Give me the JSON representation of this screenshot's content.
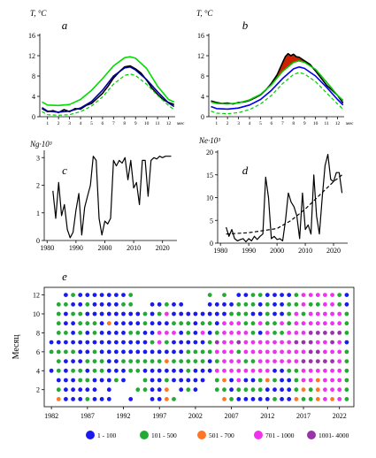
{
  "chart_data": [
    {
      "id": "a",
      "type": "line",
      "panel_label": "a",
      "ylabel": "T, °C",
      "x_unit_label": "мес",
      "x_ticks": [
        1,
        2,
        3,
        4,
        5,
        6,
        7,
        8,
        9,
        10,
        11,
        12
      ],
      "y_ticks": [
        0,
        4,
        8,
        12,
        16
      ],
      "xlim": [
        0.3,
        12.6
      ],
      "ylim": [
        0,
        16
      ],
      "series": [
        {
          "color": "#00dd00",
          "style": "solid",
          "x": [
            0.5,
            1,
            2,
            3,
            4,
            5,
            6,
            7,
            8,
            8.5,
            9,
            10,
            11,
            12,
            12.5
          ],
          "y": [
            2.9,
            2.3,
            2.2,
            2.4,
            3.4,
            5.2,
            7.5,
            10.0,
            11.6,
            11.8,
            11.5,
            9.5,
            6.0,
            3.4,
            2.9
          ]
        },
        {
          "color": "#000000",
          "style": "solid",
          "x": [
            0.5,
            1,
            1.5,
            2,
            2.5,
            3,
            3.5,
            4,
            4.5,
            5,
            5.5,
            6,
            6.5,
            7,
            7.5,
            8,
            8.5,
            9,
            9.5,
            10,
            10.5,
            11,
            11.5,
            12,
            12.5
          ],
          "y": [
            1.6,
            1.0,
            1.2,
            0.8,
            1.4,
            1.0,
            1.6,
            1.5,
            2.2,
            2.6,
            3.6,
            4.6,
            6.0,
            7.6,
            8.8,
            9.8,
            10.0,
            9.4,
            8.6,
            7.2,
            5.6,
            4.4,
            3.4,
            2.8,
            2.4
          ]
        },
        {
          "color": "#000099",
          "style": "solid",
          "x": [
            0.5,
            1,
            2,
            3,
            4,
            5,
            6,
            7,
            8,
            8.5,
            9,
            10,
            11,
            12,
            12.5
          ],
          "y": [
            1.8,
            1.1,
            0.9,
            1.1,
            1.7,
            3.0,
            5.2,
            8.0,
            9.6,
            9.8,
            9.2,
            7.3,
            4.9,
            2.7,
            2.0
          ]
        },
        {
          "color": "#00cc00",
          "style": "dashed",
          "x": [
            0.5,
            1,
            2,
            3,
            4,
            5,
            6,
            7,
            8,
            8.5,
            9,
            10,
            11,
            12,
            12.5
          ],
          "y": [
            1.0,
            0.4,
            0.3,
            0.4,
            1.0,
            2.1,
            3.9,
            6.4,
            8.1,
            8.4,
            8.1,
            6.4,
            4.2,
            2.2,
            1.4
          ]
        }
      ]
    },
    {
      "id": "b",
      "type": "line",
      "panel_label": "b",
      "ylabel": "T, °C",
      "x_unit_label": "мес",
      "x_ticks": [
        1,
        2,
        3,
        4,
        5,
        6,
        7,
        8,
        9,
        10,
        11,
        12
      ],
      "y_ticks": [
        0,
        4,
        8,
        12,
        16
      ],
      "xlim": [
        0.3,
        12.6
      ],
      "ylim": [
        0,
        16
      ],
      "fill_color": "#cc2200",
      "series": [
        {
          "color": "#000000",
          "style": "solid",
          "x": [
            0.5,
            1,
            1.5,
            2,
            2.5,
            3,
            3.5,
            4,
            4.5,
            5,
            5.5,
            6,
            6.5,
            7,
            7.25,
            7.5,
            7.75,
            8,
            8.25,
            8.5,
            9,
            9.5,
            10,
            10.5,
            11,
            11.5,
            12,
            12.5
          ],
          "y": [
            3.1,
            2.8,
            2.6,
            2.7,
            2.5,
            2.8,
            2.9,
            3.2,
            3.7,
            4.3,
            5.3,
            6.6,
            8.2,
            10.6,
            11.8,
            12.4,
            12.0,
            12.3,
            11.8,
            11.7,
            11.0,
            10.3,
            9.0,
            7.6,
            6.2,
            5.2,
            4.2,
            2.7
          ]
        },
        {
          "color": "#00cc00",
          "style": "solid",
          "x": [
            0.5,
            1,
            2,
            3,
            4,
            5,
            6,
            7,
            8,
            8.5,
            9,
            10,
            11,
            12,
            12.5
          ],
          "y": [
            2.9,
            2.6,
            2.5,
            2.7,
            3.3,
            4.4,
            6.3,
            8.9,
            10.7,
            11.0,
            10.7,
            9.3,
            6.8,
            4.2,
            3.2
          ]
        },
        {
          "color": "#0000ee",
          "style": "solid",
          "x": [
            0.5,
            1,
            2,
            3,
            4,
            5,
            6,
            7,
            8,
            8.5,
            9,
            10,
            11,
            12,
            12.5
          ],
          "y": [
            2.0,
            1.6,
            1.5,
            1.7,
            2.3,
            3.4,
            5.2,
            7.5,
            9.4,
            9.8,
            9.5,
            8.0,
            5.8,
            3.4,
            2.3
          ]
        },
        {
          "color": "#00cc00",
          "style": "dashed",
          "x": [
            0.5,
            1,
            2,
            3,
            4,
            5,
            6,
            7,
            8,
            8.5,
            9,
            10,
            11,
            12,
            12.5
          ],
          "y": [
            1.1,
            0.7,
            0.6,
            0.8,
            1.4,
            2.5,
            4.2,
            6.5,
            8.3,
            8.7,
            8.4,
            6.9,
            4.7,
            2.5,
            1.5
          ]
        }
      ]
    },
    {
      "id": "c",
      "type": "line",
      "panel_label": "c",
      "ylabel": "Ng·10³",
      "x_ticks": [
        1980,
        1990,
        2000,
        2010,
        2020
      ],
      "y_ticks": [
        0,
        1,
        2,
        3
      ],
      "xlim": [
        1979,
        2025
      ],
      "ylim": [
        0,
        3.2
      ],
      "series": [
        {
          "color": "#000000",
          "style": "solid",
          "x": [
            1982,
            1983,
            1984,
            1985,
            1986,
            1987,
            1988,
            1989,
            1990,
            1991,
            1992,
            1993,
            1994,
            1995,
            1996,
            1997,
            1998,
            1999,
            2000,
            2001,
            2002,
            2003,
            2004,
            2005,
            2006,
            2007,
            2008,
            2009,
            2010,
            2011,
            2012,
            2013,
            2014,
            2015,
            2016,
            2017,
            2018,
            2019,
            2020,
            2021,
            2022,
            2023
          ],
          "y": [
            1.8,
            0.8,
            2.1,
            0.9,
            1.3,
            0.4,
            0.1,
            0.3,
            1.1,
            1.7,
            0.2,
            1.2,
            1.6,
            2.0,
            3.05,
            2.9,
            0.8,
            0.2,
            0.7,
            0.6,
            0.8,
            2.9,
            2.7,
            2.9,
            2.8,
            3.0,
            2.2,
            2.9,
            1.9,
            2.1,
            1.3,
            2.9,
            2.9,
            1.6,
            2.9,
            3.0,
            2.95,
            3.05,
            3.0,
            3.05,
            3.05,
            3.05
          ]
        }
      ]
    },
    {
      "id": "d",
      "type": "line",
      "panel_label": "d",
      "ylabel": "Ne·10³",
      "x_ticks": [
        1980,
        1990,
        2000,
        2010,
        2020
      ],
      "y_ticks": [
        0,
        5,
        10,
        15,
        20
      ],
      "xlim": [
        1979,
        2025
      ],
      "ylim": [
        0,
        20
      ],
      "series": [
        {
          "color": "#000000",
          "style": "solid",
          "x": [
            1982,
            1983,
            1984,
            1985,
            1986,
            1987,
            1988,
            1989,
            1990,
            1991,
            1992,
            1993,
            1994,
            1995,
            1996,
            1997,
            1998,
            1999,
            2000,
            2001,
            2002,
            2003,
            2004,
            2005,
            2006,
            2007,
            2008,
            2009,
            2010,
            2011,
            2012,
            2013,
            2014,
            2015,
            2016,
            2017,
            2018,
            2019,
            2020,
            2021,
            2022,
            2023
          ],
          "y": [
            3.5,
            1.5,
            3.0,
            1.0,
            0.5,
            0.8,
            1.0,
            0.3,
            1.0,
            0.5,
            1.5,
            0.8,
            1.5,
            2.0,
            14.5,
            10.0,
            1.0,
            1.5,
            0.8,
            1.0,
            0.5,
            5.0,
            11.0,
            9.0,
            8.0,
            6.0,
            1.0,
            11.0,
            3.0,
            4.0,
            2.0,
            15.0,
            6.0,
            2.0,
            10.0,
            17.0,
            19.5,
            14.0,
            13.5,
            15.5,
            15.5,
            11.0
          ]
        },
        {
          "color": "#000000",
          "style": "dashed",
          "x": [
            1982,
            1990,
            2000,
            2005,
            2010,
            2015,
            2020,
            2023
          ],
          "y": [
            2.0,
            2.3,
            3.2,
            5.0,
            7.5,
            10.5,
            13.5,
            15.0
          ]
        }
      ]
    },
    {
      "id": "e",
      "type": "scatter",
      "panel_label": "e",
      "ylabel": "Месяц",
      "x_ticks": [
        1982,
        1987,
        1992,
        1997,
        2002,
        2007,
        2012,
        2017,
        2022
      ],
      "y_ticks": [
        2,
        4,
        6,
        8,
        10,
        12
      ],
      "xlim": [
        1981,
        2024
      ],
      "ylim": [
        0.2,
        12.8
      ],
      "years": [
        1982,
        1983,
        1984,
        1985,
        1986,
        1987,
        1988,
        1989,
        1990,
        1991,
        1992,
        1993,
        1994,
        1995,
        1996,
        1997,
        1998,
        1999,
        2000,
        2001,
        2002,
        2003,
        2004,
        2005,
        2006,
        2007,
        2008,
        2009,
        2010,
        2011,
        2012,
        2013,
        2014,
        2015,
        2016,
        2017,
        2018,
        2019,
        2020,
        2021,
        2022,
        2023
      ],
      "legend": [
        {
          "label": "1 - 100",
          "color": "#1a1aee"
        },
        {
          "label": "101 - 500",
          "color": "#22aa33"
        },
        {
          "label": "501 - 700",
          "color": "#ff7722"
        },
        {
          "label": "701 - 1000",
          "color": "#ee33ee"
        },
        {
          "label": "1001- 4000",
          "color": "#9933aa"
        }
      ],
      "rows": [
        "..BGBBBBBBBG..........G.G.BBGGBBBBGMMMMMGB",
        ".GGBBGBBBBGG..BBGBB...BBBBGGGBGBBGGMGGMMGB",
        ".GBGGBBBBBBBBGBGMBBBBBBBBGGGBBGBBGMGMMMMMG",
        ".GBBGGGBOBBBBGBBBGGGBGGBMMMGGMGGMGMMMMMMMG",
        ".GGBGBGBBBBGGBBMMMBGBMBGMMMMGBMGGMMMPPPPPG",
        "BBBBBBBBBBBBBBGMGBBBBBGPMMPMMMMMMMPPPMMPMB",
        "GGGGBBGBBBBBBBBBBBBGGGGMMMGMMMMMMMMMPPMMMG",
        ".GBBBGGGBBGGGGGGOGGGGGBGMMMGGMMMMMMPPPPPMG",
        "BGBGGBGGBBBGGBBBBBBGBBBMMMMMMMMBBGGMMMMMMG",
        ".BBBGGBBBGB..GBBGBBBBB.GOBMBBGOGBBGMMOMMMG",
        ".GBBBBB.B...GGBBO.BGB..GGBGGGGBBBBGOGOMMMG",
        ".OBBBGBBB..B..BBOG......OGBBBBBGBBOGGOMOMG"
      ]
    }
  ]
}
